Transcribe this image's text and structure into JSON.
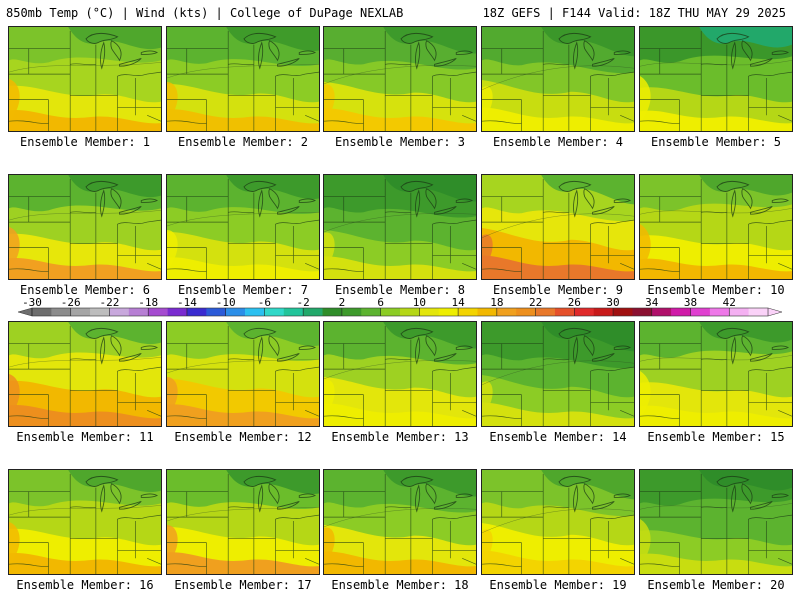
{
  "header": {
    "left_title": "850mb Temp (°C) | Wind (kts) | College of DuPage NEXLAB",
    "right_title": "18Z GEFS | F144 Valid: 18Z THU MAY 29 2025"
  },
  "members": [
    {
      "label": "Ensemble Member: 1",
      "palette": [
        "#4fa72c",
        "#7cc32a",
        "#a7d51f",
        "#e3e60b",
        "#f2b800"
      ]
    },
    {
      "label": "Ensemble Member: 2",
      "palette": [
        "#3f9b2a",
        "#5cb32f",
        "#8ccc25",
        "#d4e10e",
        "#f0c000"
      ]
    },
    {
      "label": "Ensemble Member: 3",
      "palette": [
        "#3d9a2b",
        "#58ae30",
        "#86c927",
        "#d6e20d",
        "#f3c900"
      ]
    },
    {
      "label": "Ensemble Member: 4",
      "palette": [
        "#3b972a",
        "#52aa2f",
        "#82c628",
        "#c8dd10",
        "#eeee00"
      ]
    },
    {
      "label": "Ensemble Member: 5",
      "palette": [
        "#22a86a",
        "#3b972a",
        "#6bbd2b",
        "#b5d716",
        "#eeee00"
      ]
    },
    {
      "label": "Ensemble Member: 6",
      "palette": [
        "#3d9a2b",
        "#5cb32f",
        "#9ed122",
        "#e7e70a",
        "#f1a020"
      ]
    },
    {
      "label": "Ensemble Member: 7",
      "palette": [
        "#3d9a2b",
        "#5cb32f",
        "#8ccc25",
        "#d4e10e",
        "#eeee00"
      ]
    },
    {
      "label": "Ensemble Member: 8",
      "palette": [
        "#2f8d29",
        "#3d9a2b",
        "#5cb32f",
        "#8ccc25",
        "#d4e10e"
      ]
    },
    {
      "label": "Ensemble Member: 9",
      "palette": [
        "#5cb32f",
        "#a7d51f",
        "#e6e60b",
        "#f2b800",
        "#e8782a"
      ]
    },
    {
      "label": "Ensemble Member: 10",
      "palette": [
        "#4fa72c",
        "#7cc32a",
        "#b5d716",
        "#eeee00",
        "#f2b800"
      ]
    },
    {
      "label": "Ensemble Member: 11",
      "palette": [
        "#5cb32f",
        "#9ed122",
        "#e3e60b",
        "#f2b800",
        "#ed8f1d"
      ]
    },
    {
      "label": "Ensemble Member: 12",
      "palette": [
        "#5cb32f",
        "#8ccc25",
        "#d4e10e",
        "#f2c900",
        "#f0a01e"
      ]
    },
    {
      "label": "Ensemble Member: 13",
      "palette": [
        "#3d9a2b",
        "#5cb32f",
        "#9ed122",
        "#e3e60b",
        "#eeee00"
      ]
    },
    {
      "label": "Ensemble Member: 14",
      "palette": [
        "#2f8d29",
        "#3d9a2b",
        "#5cb32f",
        "#8ccc25",
        "#d4e10e"
      ]
    },
    {
      "label": "Ensemble Member: 15",
      "palette": [
        "#3d9a2b",
        "#5cb32f",
        "#9ed122",
        "#e3e60b",
        "#eeee00"
      ]
    },
    {
      "label": "Ensemble Member: 16",
      "palette": [
        "#4fa72c",
        "#7cc32a",
        "#b5d716",
        "#eeee00",
        "#f2b800"
      ]
    },
    {
      "label": "Ensemble Member: 17",
      "palette": [
        "#3d9a2b",
        "#6bbd2b",
        "#b5d716",
        "#eeee00",
        "#f0a01e"
      ]
    },
    {
      "label": "Ensemble Member: 18",
      "palette": [
        "#3d9a2b",
        "#5cb32f",
        "#8ccc25",
        "#e3e60b",
        "#f2b800"
      ]
    },
    {
      "label": "Ensemble Member: 19",
      "palette": [
        "#4fa72c",
        "#7cc32a",
        "#b5d716",
        "#eeee00",
        "#f3d400"
      ]
    },
    {
      "label": "Ensemble Member: 20",
      "palette": [
        "#2f8d29",
        "#3d9a2b",
        "#5cb32f",
        "#8ccc25",
        "#c8dd10"
      ]
    }
  ],
  "color_scale": {
    "tick_labels": [
      "-30",
      "-26",
      "-22",
      "-18",
      "-14",
      "-10",
      "-6",
      "-2",
      "2",
      "6",
      "10",
      "14",
      "18",
      "22",
      "26",
      "30",
      "34",
      "38",
      "42"
    ],
    "colors": [
      "#6e6e6e",
      "#8c8c8c",
      "#a5a5a5",
      "#bdbdbd",
      "#c8a8dc",
      "#b77fd4",
      "#a54bd0",
      "#7a2bd0",
      "#3a2bd0",
      "#2b5ad8",
      "#2b8ee8",
      "#2bc0f0",
      "#30d8c8",
      "#22c49a",
      "#22a86a",
      "#2f8d29",
      "#3d9a2b",
      "#5cb32f",
      "#8ccc25",
      "#b5d716",
      "#e3e60b",
      "#eeee00",
      "#f3d400",
      "#f2b800",
      "#f0a01e",
      "#ed8f1d",
      "#e8782a",
      "#e5502a",
      "#e02a2a",
      "#c81a1a",
      "#a01010",
      "#8a1030",
      "#b0106a",
      "#d01aa8",
      "#e040d0",
      "#ee78e8",
      "#f4b0f2",
      "#fad2f8"
    ]
  }
}
